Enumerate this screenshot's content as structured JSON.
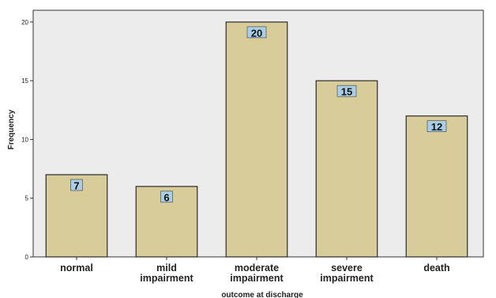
{
  "chart_data": {
    "type": "bar",
    "categories": [
      [
        "normal"
      ],
      [
        "mild",
        "impairment"
      ],
      [
        "moderate",
        "impairment"
      ],
      [
        "severe",
        "impairment"
      ],
      [
        "death"
      ]
    ],
    "values": [
      7,
      6,
      20,
      15,
      12
    ],
    "data_labels": [
      "7",
      "6",
      "20",
      "15",
      "12"
    ],
    "xlabel": "outcome at discharge",
    "ylabel": "Frequency",
    "ylim": [
      0,
      21
    ],
    "yticks": [
      0,
      5,
      10,
      15,
      20
    ],
    "grid": false,
    "legend": "none",
    "colors": {
      "plot_background": "#ececec",
      "bar_fill": "#d9cc9b",
      "bar_stroke": "#2b2b2b",
      "label_box": "#a9cfe6",
      "axis": "#333333"
    }
  }
}
